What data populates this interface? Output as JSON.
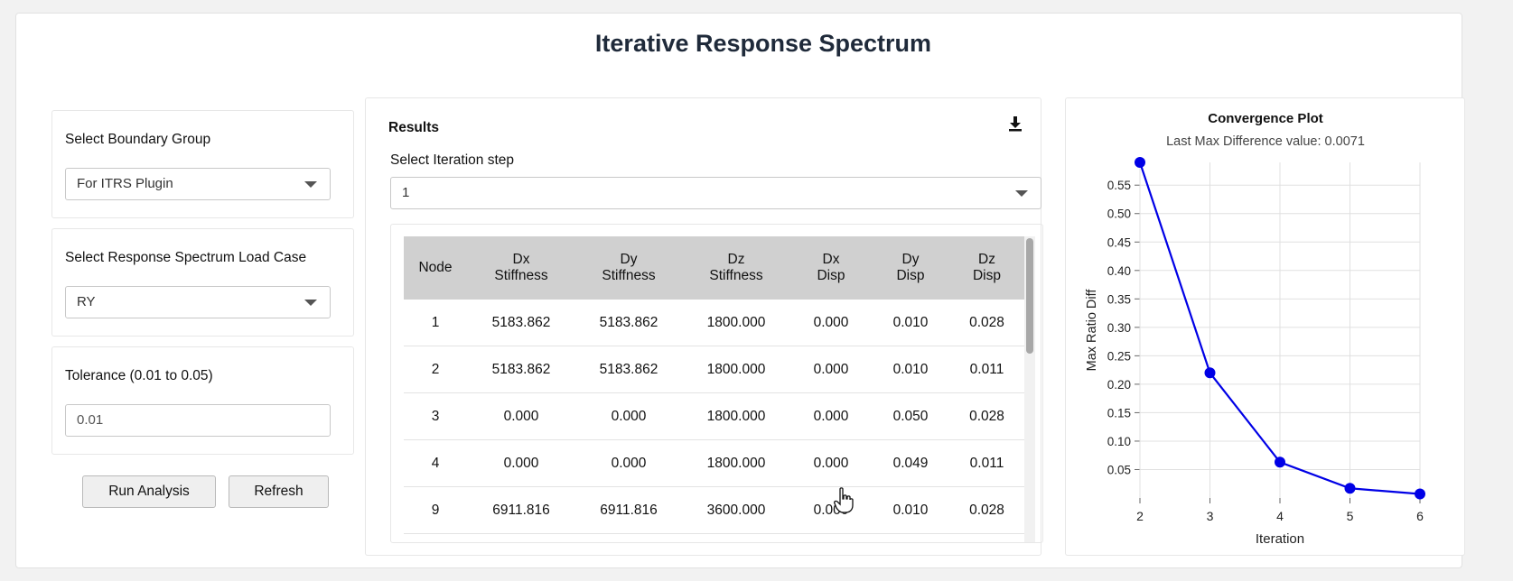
{
  "page_title": "Iterative Response Spectrum",
  "left_panel": {
    "boundary_group": {
      "label": "Select Boundary Group",
      "value": "For ITRS Plugin"
    },
    "load_case": {
      "label": "Select Response Spectrum Load Case",
      "value": "RY"
    },
    "tolerance": {
      "label": "Tolerance (0.01 to 0.05)",
      "value": "0.01"
    },
    "run_label": "Run Analysis",
    "refresh_label": "Refresh"
  },
  "results": {
    "title": "Results",
    "iteration_label": "Select Iteration step",
    "iteration_value": "1",
    "download_icon": "download-icon",
    "columns": [
      {
        "l1": "Node",
        "l2": ""
      },
      {
        "l1": "Dx",
        "l2": "Stiffness"
      },
      {
        "l1": "Dy",
        "l2": "Stiffness"
      },
      {
        "l1": "Dz",
        "l2": "Stiffness"
      },
      {
        "l1": "Dx",
        "l2": "Disp"
      },
      {
        "l1": "Dy",
        "l2": "Disp"
      },
      {
        "l1": "Dz",
        "l2": "Disp"
      }
    ],
    "rows": [
      [
        "1",
        "5183.862",
        "5183.862",
        "1800.000",
        "0.000",
        "0.010",
        "0.028"
      ],
      [
        "2",
        "5183.862",
        "5183.862",
        "1800.000",
        "0.000",
        "0.010",
        "0.011"
      ],
      [
        "3",
        "0.000",
        "0.000",
        "1800.000",
        "0.000",
        "0.050",
        "0.028"
      ],
      [
        "4",
        "0.000",
        "0.000",
        "1800.000",
        "0.000",
        "0.049",
        "0.011"
      ],
      [
        "9",
        "6911.816",
        "6911.816",
        "3600.000",
        "0.000",
        "0.010",
        "0.028"
      ]
    ]
  },
  "chart_data": {
    "type": "line",
    "title": "Convergence Plot",
    "subtitle": "Last Max Difference value: 0.0071",
    "xlabel": "Iteration",
    "ylabel": "Max Ratio Diff",
    "x": [
      2,
      3,
      4,
      5,
      6
    ],
    "series": [
      {
        "values": [
          0.59,
          0.22,
          0.063,
          0.017,
          0.0071
        ]
      }
    ],
    "xlim": [
      2,
      6
    ],
    "ylim": [
      0,
      0.59
    ],
    "yticks": [
      0.05,
      0.1,
      0.15,
      0.2,
      0.25,
      0.3,
      0.35,
      0.4,
      0.45,
      0.5,
      0.55
    ],
    "xticks": [
      2,
      3,
      4,
      5,
      6
    ],
    "grid": true,
    "color": "#0000e6"
  }
}
